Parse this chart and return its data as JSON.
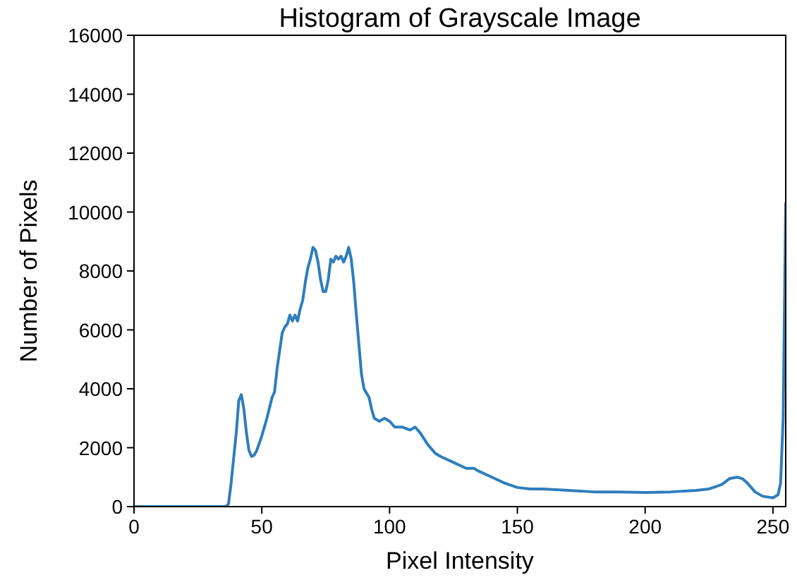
{
  "chart_data": {
    "type": "line",
    "title": "Histogram of Grayscale Image",
    "xlabel": "Pixel Intensity",
    "ylabel": "Number of Pixels",
    "x": [
      0,
      10,
      20,
      30,
      36,
      37,
      38,
      40,
      41,
      42,
      43,
      44,
      45,
      46,
      47,
      48,
      50,
      52,
      54,
      55,
      56,
      57,
      58,
      59,
      60,
      61,
      62,
      63,
      64,
      65,
      66,
      67,
      68,
      69,
      70,
      71,
      72,
      73,
      74,
      75,
      76,
      77,
      78,
      79,
      80,
      81,
      82,
      83,
      84,
      85,
      86,
      87,
      88,
      89,
      90,
      92,
      93,
      94,
      96,
      98,
      100,
      102,
      105,
      108,
      110,
      112,
      115,
      118,
      120,
      125,
      130,
      133,
      135,
      140,
      145,
      150,
      155,
      160,
      170,
      180,
      190,
      200,
      210,
      220,
      225,
      230,
      233,
      236,
      238,
      240,
      243,
      246,
      250,
      252,
      253,
      254,
      255
    ],
    "series": [
      {
        "color": "#2e7ebc",
        "values": [
          0,
          0,
          0,
          0,
          0,
          100,
          800,
          2500,
          3600,
          3800,
          3300,
          2500,
          1900,
          1700,
          1750,
          1900,
          2400,
          3000,
          3700,
          3900,
          4700,
          5300,
          5900,
          6100,
          6200,
          6500,
          6300,
          6500,
          6300,
          6700,
          7000,
          7600,
          8100,
          8400,
          8800,
          8700,
          8300,
          7700,
          7300,
          7300,
          7700,
          8400,
          8300,
          8500,
          8400,
          8500,
          8300,
          8500,
          8800,
          8400,
          7600,
          6500,
          5500,
          4500,
          4000,
          3700,
          3300,
          3000,
          2900,
          3000,
          2900,
          2700,
          2700,
          2600,
          2700,
          2500,
          2100,
          1800,
          1700,
          1500,
          1300,
          1300,
          1200,
          1000,
          800,
          650,
          600,
          600,
          550,
          500,
          500,
          480,
          500,
          550,
          600,
          750,
          950,
          1000,
          950,
          800,
          500,
          350,
          300,
          400,
          800,
          3000,
          10300
        ]
      }
    ],
    "xlim": [
      0,
      255
    ],
    "ylim": [
      0,
      16000
    ],
    "xticks": [
      0,
      50,
      100,
      150,
      200,
      250
    ],
    "yticks": [
      0,
      2000,
      4000,
      6000,
      8000,
      10000,
      12000,
      14000,
      16000
    ],
    "grid": false,
    "marker": "none",
    "line_style": "solid"
  }
}
